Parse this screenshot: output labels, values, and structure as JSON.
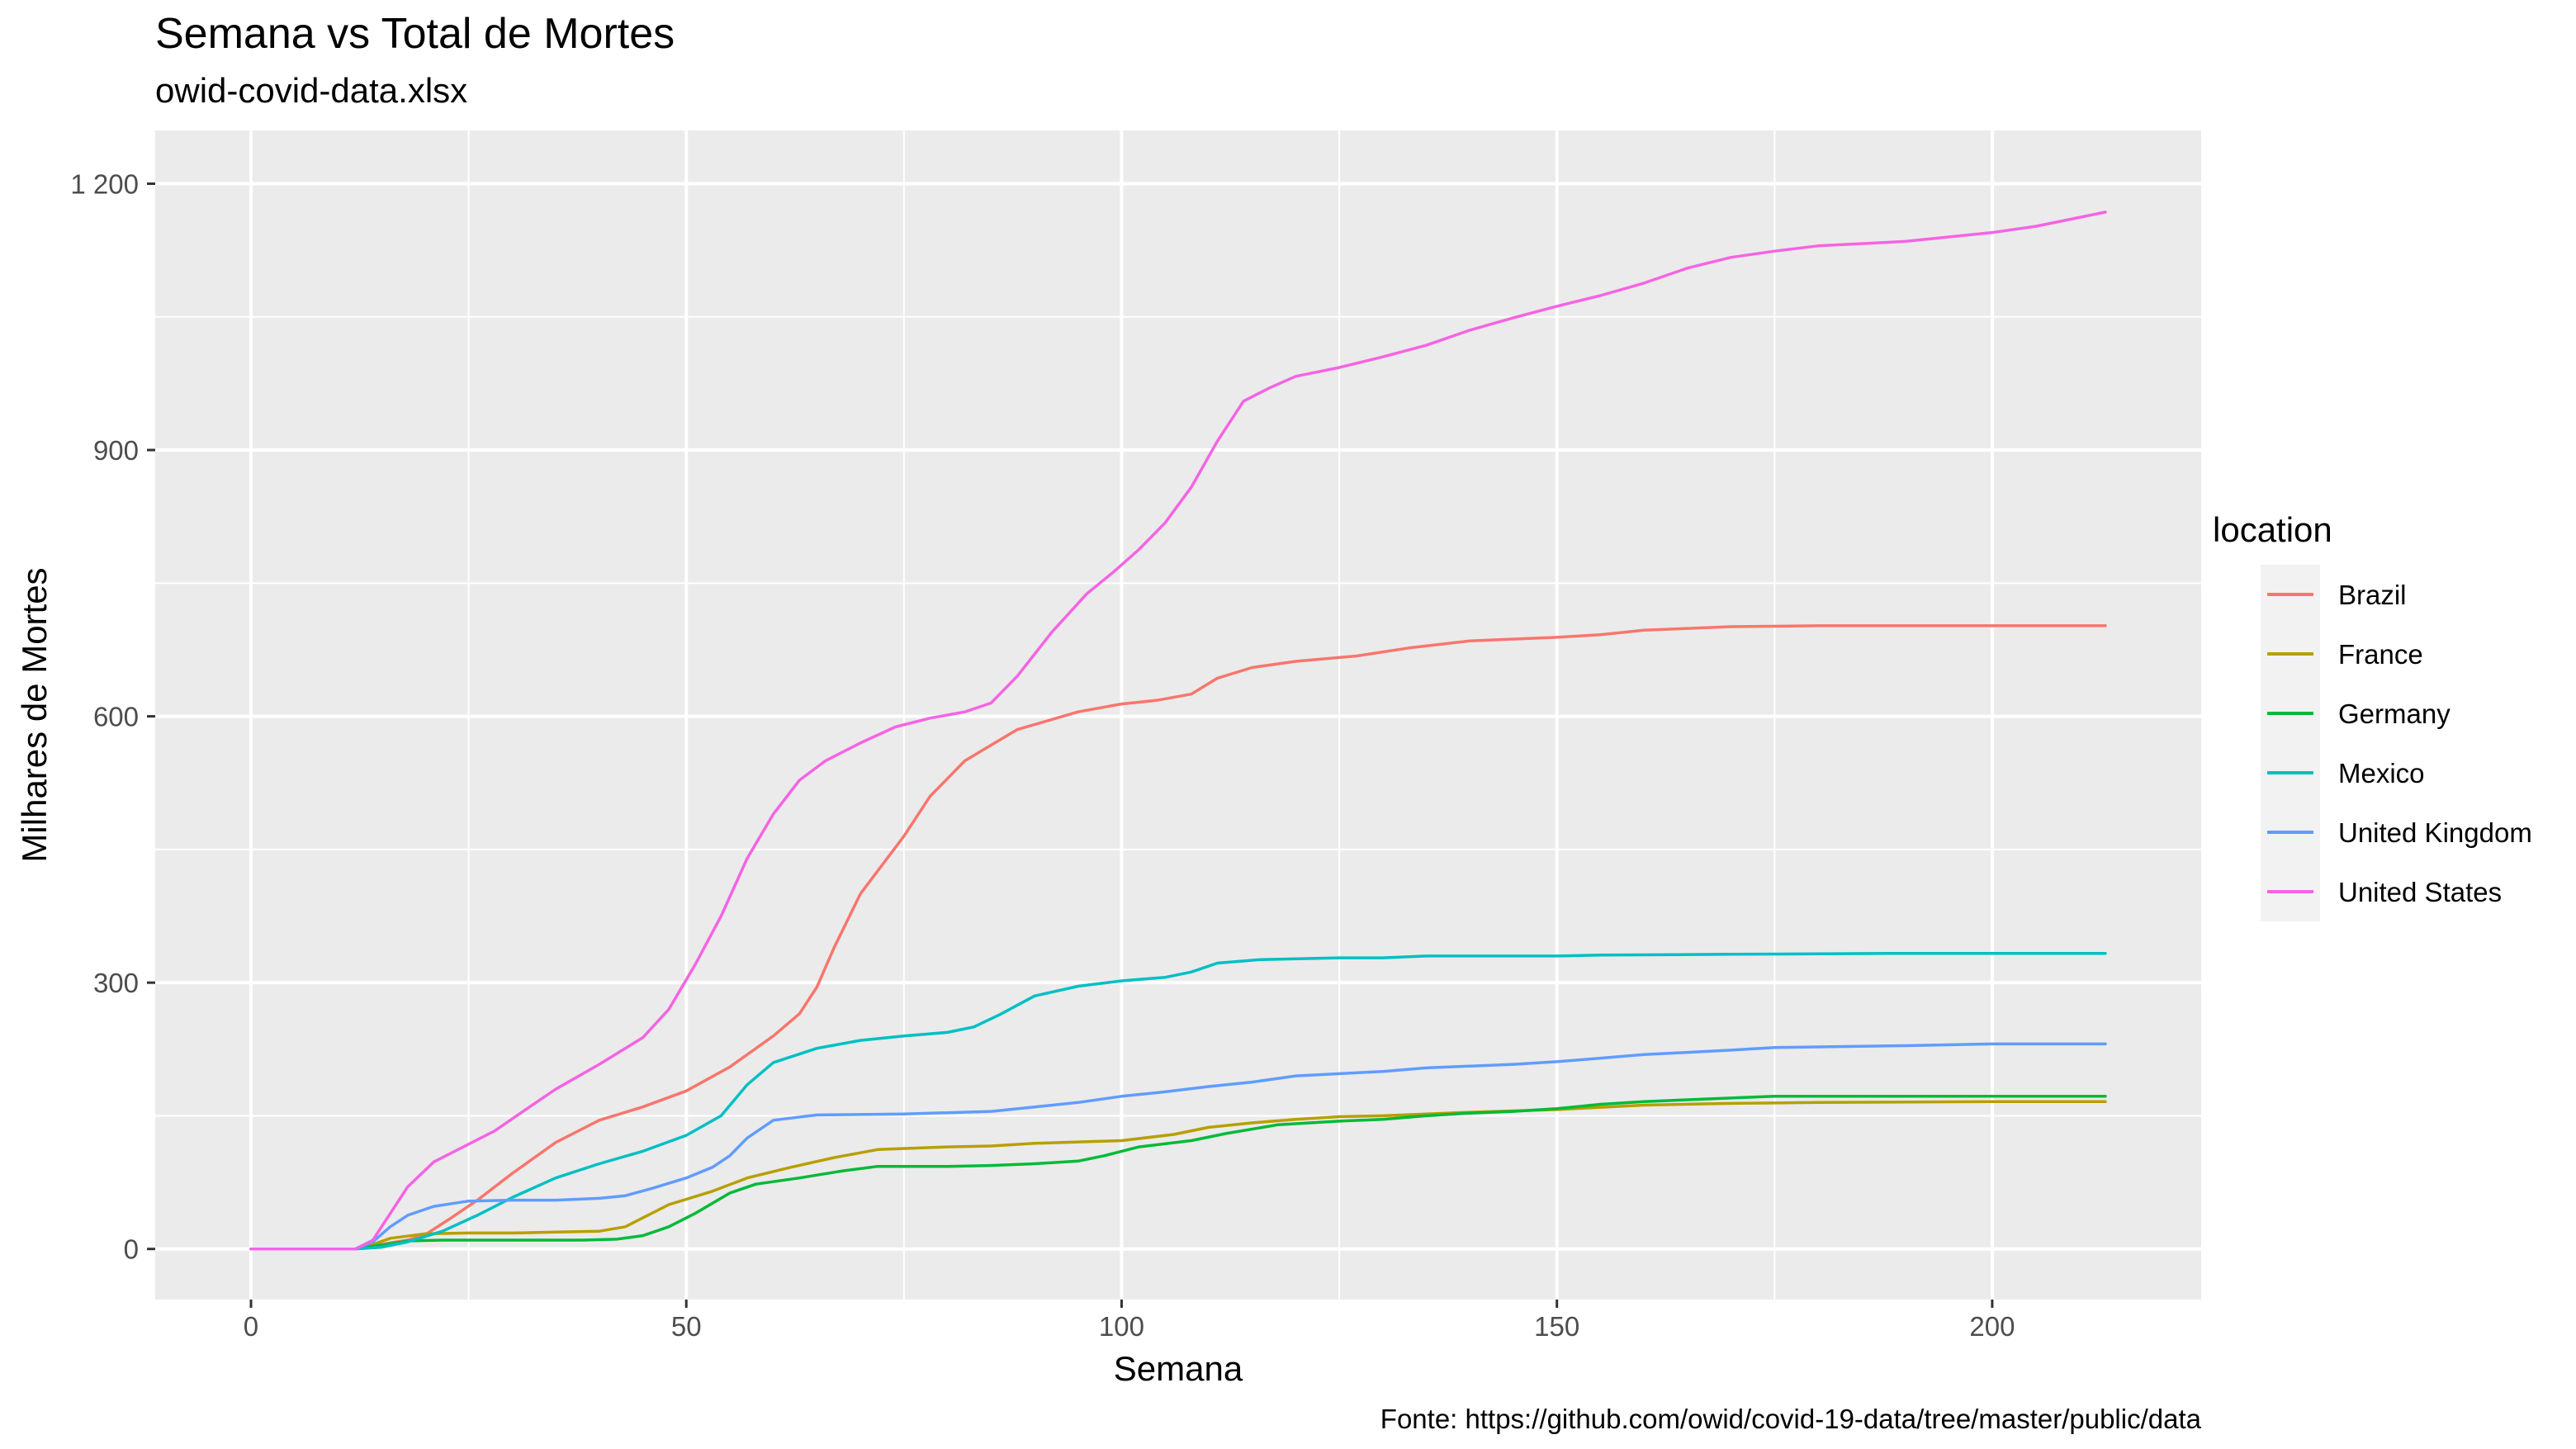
{
  "chart_data": {
    "type": "line",
    "title": "Semana vs Total de Mortes",
    "subtitle": "owid-covid-data.xlsx",
    "xlabel": "Semana",
    "ylabel": "Milhares de Mortes",
    "caption": "Fonte: https://github.com/owid/covid-19-data/tree/master/public/data",
    "xlim": [
      -11,
      224
    ],
    "ylim": [
      -57,
      1260
    ],
    "xticks": [
      0,
      50,
      100,
      150,
      200
    ],
    "xtick_labels": [
      "0",
      "50",
      "100",
      "150",
      "200"
    ],
    "yticks": [
      0,
      300,
      600,
      900,
      1200
    ],
    "ytick_labels": [
      "0",
      "300",
      "600",
      "900",
      "1 200"
    ],
    "grid": true,
    "legend_title": "location",
    "legend_position": "right",
    "series": [
      {
        "name": "Brazil",
        "color": "#F8766D",
        "points": [
          [
            0,
            0
          ],
          [
            8,
            0
          ],
          [
            12,
            0
          ],
          [
            14,
            3
          ],
          [
            16,
            7
          ],
          [
            18,
            10
          ],
          [
            20,
            16
          ],
          [
            23,
            35
          ],
          [
            26,
            55
          ],
          [
            30,
            85
          ],
          [
            35,
            120
          ],
          [
            40,
            145
          ],
          [
            45,
            160
          ],
          [
            50,
            178
          ],
          [
            55,
            205
          ],
          [
            60,
            240
          ],
          [
            63,
            265
          ],
          [
            65,
            295
          ],
          [
            67,
            340
          ],
          [
            70,
            400
          ],
          [
            75,
            465
          ],
          [
            78,
            510
          ],
          [
            82,
            550
          ],
          [
            88,
            585
          ],
          [
            95,
            605
          ],
          [
            100,
            614
          ],
          [
            104,
            618
          ],
          [
            108,
            625
          ],
          [
            111,
            643
          ],
          [
            115,
            655
          ],
          [
            120,
            662
          ],
          [
            127,
            668
          ],
          [
            133,
            677
          ],
          [
            140,
            685
          ],
          [
            150,
            689
          ],
          [
            155,
            692
          ],
          [
            160,
            697
          ],
          [
            170,
            701
          ],
          [
            180,
            702
          ],
          [
            200,
            702
          ],
          [
            213,
            702
          ]
        ]
      },
      {
        "name": "France",
        "color": "#B79F00",
        "points": [
          [
            0,
            0
          ],
          [
            12,
            0
          ],
          [
            14,
            5
          ],
          [
            16,
            12
          ],
          [
            20,
            17
          ],
          [
            25,
            18
          ],
          [
            30,
            18
          ],
          [
            35,
            19
          ],
          [
            40,
            20
          ],
          [
            43,
            25
          ],
          [
            45,
            35
          ],
          [
            48,
            50
          ],
          [
            53,
            65
          ],
          [
            57,
            80
          ],
          [
            62,
            92
          ],
          [
            67,
            103
          ],
          [
            72,
            112
          ],
          [
            80,
            115
          ],
          [
            85,
            116
          ],
          [
            90,
            119
          ],
          [
            100,
            122
          ],
          [
            106,
            129
          ],
          [
            110,
            137
          ],
          [
            115,
            142
          ],
          [
            120,
            146
          ],
          [
            125,
            149
          ],
          [
            130,
            150
          ],
          [
            135,
            152
          ],
          [
            140,
            154
          ],
          [
            150,
            157
          ],
          [
            160,
            162
          ],
          [
            170,
            164
          ],
          [
            180,
            165
          ],
          [
            200,
            166
          ],
          [
            213,
            166
          ]
        ]
      },
      {
        "name": "Germany",
        "color": "#00BA38",
        "points": [
          [
            0,
            0
          ],
          [
            12,
            0
          ],
          [
            14,
            3
          ],
          [
            16,
            6
          ],
          [
            18,
            9
          ],
          [
            22,
            10
          ],
          [
            30,
            10
          ],
          [
            38,
            10
          ],
          [
            42,
            11
          ],
          [
            45,
            15
          ],
          [
            48,
            25
          ],
          [
            51,
            40
          ],
          [
            55,
            63
          ],
          [
            58,
            73
          ],
          [
            63,
            80
          ],
          [
            68,
            88
          ],
          [
            72,
            93
          ],
          [
            80,
            93
          ],
          [
            85,
            94
          ],
          [
            90,
            96
          ],
          [
            95,
            99
          ],
          [
            98,
            105
          ],
          [
            102,
            115
          ],
          [
            108,
            122
          ],
          [
            112,
            130
          ],
          [
            118,
            140
          ],
          [
            125,
            144
          ],
          [
            130,
            146
          ],
          [
            135,
            150
          ],
          [
            140,
            153
          ],
          [
            145,
            155
          ],
          [
            150,
            158
          ],
          [
            155,
            163
          ],
          [
            160,
            166
          ],
          [
            170,
            170
          ],
          [
            175,
            172
          ],
          [
            200,
            172
          ],
          [
            213,
            172
          ]
        ]
      },
      {
        "name": "Mexico",
        "color": "#00BFC4",
        "points": [
          [
            0,
            0
          ],
          [
            12,
            0
          ],
          [
            15,
            2
          ],
          [
            18,
            8
          ],
          [
            22,
            20
          ],
          [
            26,
            38
          ],
          [
            30,
            58
          ],
          [
            35,
            80
          ],
          [
            40,
            96
          ],
          [
            45,
            110
          ],
          [
            50,
            128
          ],
          [
            54,
            150
          ],
          [
            57,
            185
          ],
          [
            60,
            210
          ],
          [
            65,
            226
          ],
          [
            70,
            235
          ],
          [
            75,
            240
          ],
          [
            80,
            244
          ],
          [
            83,
            250
          ],
          [
            86,
            264
          ],
          [
            90,
            285
          ],
          [
            95,
            296
          ],
          [
            100,
            302
          ],
          [
            105,
            306
          ],
          [
            108,
            312
          ],
          [
            111,
            322
          ],
          [
            116,
            326
          ],
          [
            125,
            328
          ],
          [
            130,
            328
          ],
          [
            135,
            330
          ],
          [
            150,
            330
          ],
          [
            155,
            331
          ],
          [
            170,
            332
          ],
          [
            190,
            333
          ],
          [
            213,
            333
          ]
        ]
      },
      {
        "name": "United Kingdom",
        "color": "#619CFF",
        "points": [
          [
            0,
            0
          ],
          [
            12,
            0
          ],
          [
            14,
            8
          ],
          [
            16,
            25
          ],
          [
            18,
            38
          ],
          [
            21,
            48
          ],
          [
            25,
            54
          ],
          [
            30,
            55
          ],
          [
            35,
            55
          ],
          [
            40,
            57
          ],
          [
            43,
            60
          ],
          [
            46,
            68
          ],
          [
            50,
            80
          ],
          [
            53,
            92
          ],
          [
            55,
            105
          ],
          [
            57,
            125
          ],
          [
            60,
            145
          ],
          [
            65,
            151
          ],
          [
            75,
            152
          ],
          [
            85,
            155
          ],
          [
            90,
            160
          ],
          [
            95,
            165
          ],
          [
            100,
            172
          ],
          [
            105,
            177
          ],
          [
            110,
            183
          ],
          [
            115,
            188
          ],
          [
            120,
            195
          ],
          [
            130,
            200
          ],
          [
            135,
            204
          ],
          [
            145,
            208
          ],
          [
            150,
            211
          ],
          [
            155,
            215
          ],
          [
            160,
            219
          ],
          [
            170,
            224
          ],
          [
            175,
            227
          ],
          [
            190,
            229
          ],
          [
            200,
            231
          ],
          [
            213,
            231
          ]
        ]
      },
      {
        "name": "United States",
        "color": "#F564E3",
        "points": [
          [
            0,
            0
          ],
          [
            12,
            0
          ],
          [
            14,
            10
          ],
          [
            16,
            40
          ],
          [
            18,
            70
          ],
          [
            21,
            98
          ],
          [
            25,
            118
          ],
          [
            28,
            133
          ],
          [
            32,
            160
          ],
          [
            35,
            180
          ],
          [
            40,
            208
          ],
          [
            45,
            238
          ],
          [
            48,
            270
          ],
          [
            51,
            320
          ],
          [
            54,
            375
          ],
          [
            57,
            440
          ],
          [
            60,
            490
          ],
          [
            63,
            528
          ],
          [
            66,
            550
          ],
          [
            70,
            570
          ],
          [
            74,
            588
          ],
          [
            78,
            598
          ],
          [
            82,
            605
          ],
          [
            85,
            615
          ],
          [
            88,
            645
          ],
          [
            92,
            695
          ],
          [
            96,
            738
          ],
          [
            99,
            762
          ],
          [
            102,
            788
          ],
          [
            105,
            818
          ],
          [
            108,
            858
          ],
          [
            111,
            910
          ],
          [
            114,
            955
          ],
          [
            117,
            970
          ],
          [
            120,
            983
          ],
          [
            125,
            993
          ],
          [
            130,
            1005
          ],
          [
            135,
            1018
          ],
          [
            140,
            1035
          ],
          [
            145,
            1049
          ],
          [
            150,
            1062
          ],
          [
            155,
            1074
          ],
          [
            160,
            1088
          ],
          [
            165,
            1105
          ],
          [
            170,
            1117
          ],
          [
            175,
            1124
          ],
          [
            180,
            1130
          ],
          [
            190,
            1135
          ],
          [
            200,
            1145
          ],
          [
            205,
            1152
          ],
          [
            210,
            1162
          ],
          [
            213,
            1168
          ]
        ]
      }
    ]
  }
}
